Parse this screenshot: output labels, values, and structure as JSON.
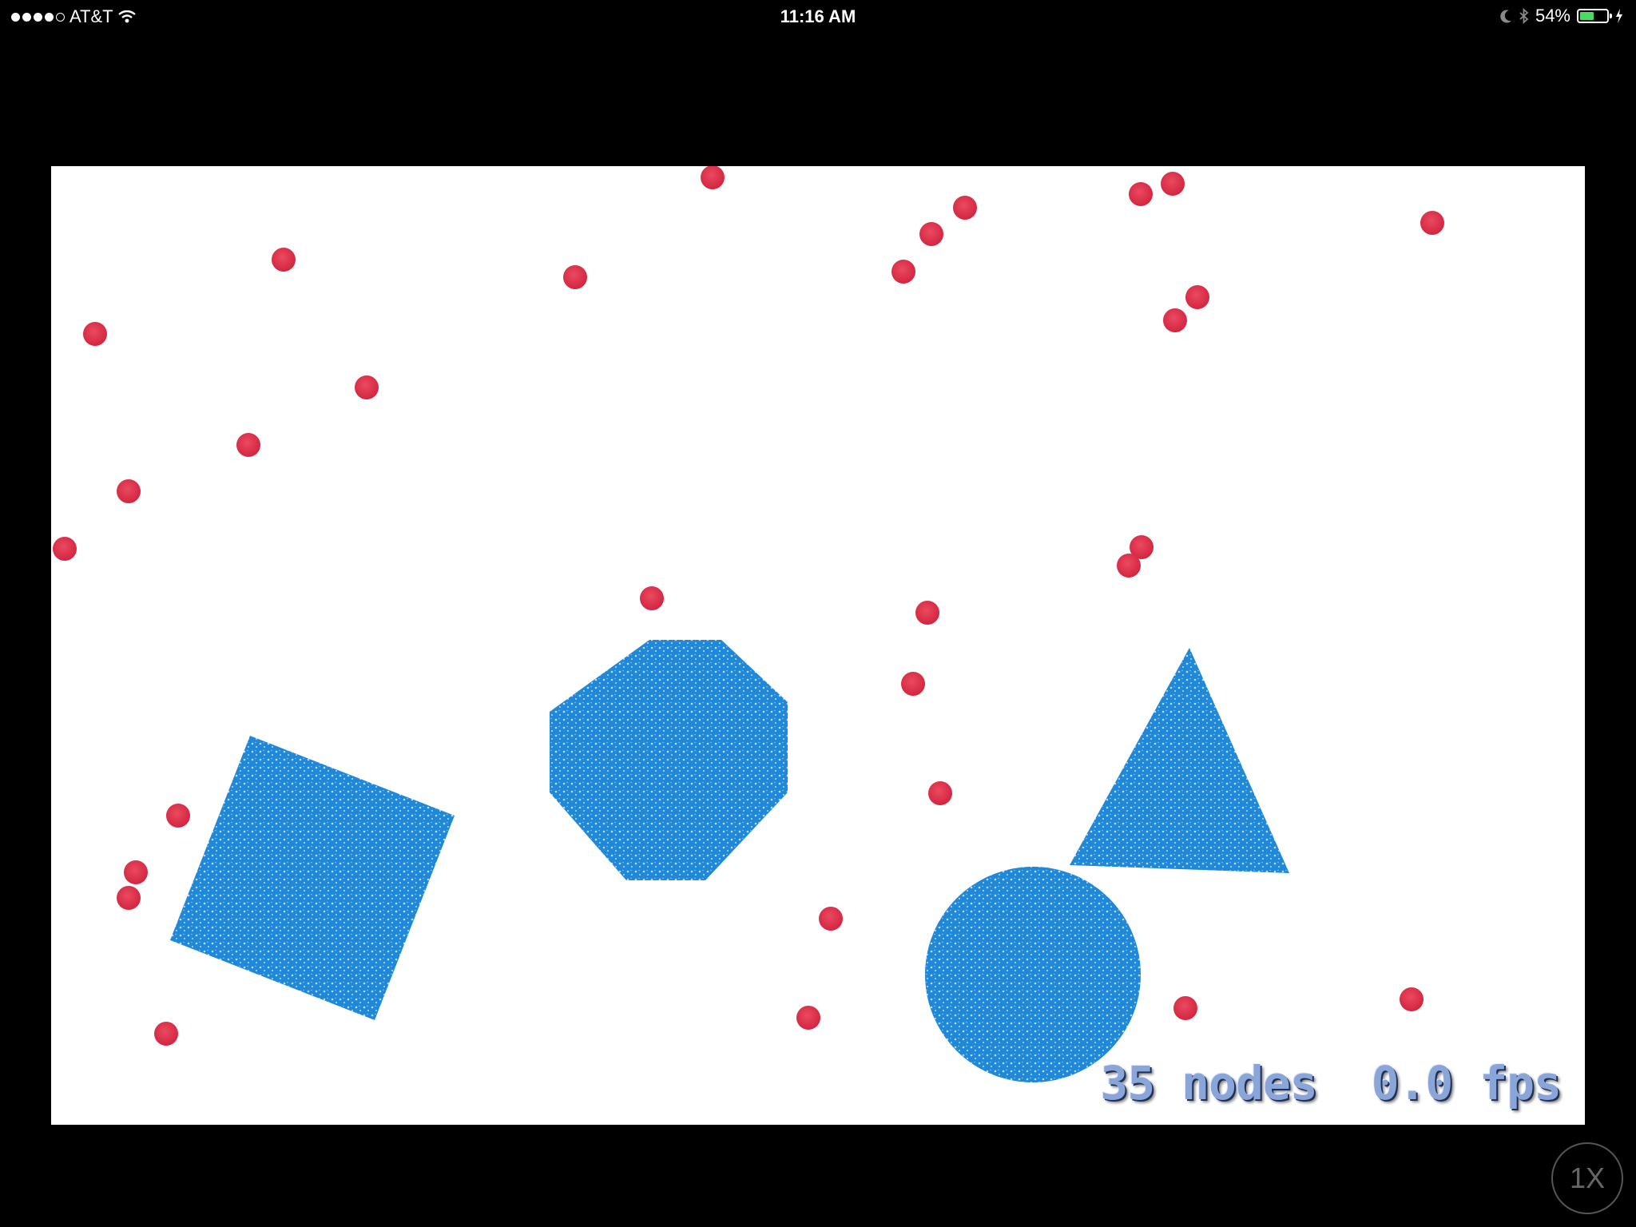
{
  "status_bar": {
    "carrier": "AT&T",
    "signal_bars_filled": 4,
    "signal_bars_total": 5,
    "time": "11:16 AM",
    "battery_percent_label": "54%",
    "battery_level": 0.54
  },
  "colors": {
    "ball": "#e0304a",
    "shape": "#1f88d8",
    "background": "#ffffff",
    "battery": "#4cd964"
  },
  "icons": [
    "wifi-icon",
    "moon-icon",
    "bluetooth-icon",
    "battery-icon",
    "charging-bolt-icon"
  ],
  "scene": {
    "shape_kinds": [
      "square",
      "octagon",
      "triangle",
      "circle"
    ]
  },
  "hud": {
    "stats": "35 nodes  0.0 fps"
  },
  "speed_button": {
    "label": "1X"
  }
}
